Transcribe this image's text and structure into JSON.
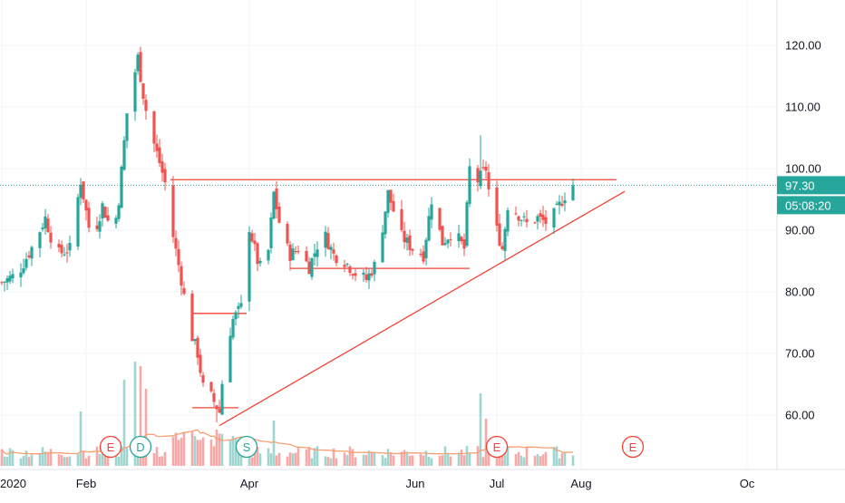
{
  "chart_data": {
    "type": "candlestick",
    "colors": {
      "up": "#26a69a",
      "down": "#ef5350",
      "volume_up": "#9fd6cf",
      "volume_down": "#f7a9a7",
      "drawing": "#f44336",
      "volume_ma": "#f7a072",
      "price_line": "#26a69a",
      "grid": "#f0f3fa",
      "axis_text": "#131722"
    },
    "yaxis": {
      "ticks": [
        60,
        70,
        80,
        90,
        100,
        110,
        120
      ],
      "labels": [
        "60.00",
        "70.00",
        "80.00",
        "90.00",
        "100.00",
        "110.00",
        "120.00"
      ],
      "ylim": [
        52,
        128
      ]
    },
    "xaxis": {
      "labels": [
        "2020",
        "Feb",
        "Apr",
        "Jun",
        "Jul",
        "Aug",
        "Oc"
      ],
      "label_day": [
        0,
        31,
        91,
        152,
        182,
        213,
        274
      ],
      "xlim_day": [
        0,
        282
      ]
    },
    "last_price": "97.30",
    "countdown": "05:08:20",
    "events": [
      {
        "day": 40,
        "label": "E"
      },
      {
        "day": 51,
        "label": "D"
      },
      {
        "day": 90,
        "label": "S"
      },
      {
        "day": 182,
        "label": "E"
      },
      {
        "day": 232,
        "label": "E"
      }
    ],
    "drawings": {
      "lines": [
        {
          "d1": 62,
          "v1": 98.2,
          "d2": 226,
          "v2": 98.2
        },
        {
          "d1": 80,
          "v1": 58.3,
          "d2": 229,
          "v2": 96.3
        },
        {
          "d1": 106,
          "v1": 83.8,
          "d2": 172,
          "v2": 83.8
        },
        {
          "d1": 70,
          "v1": 76.5,
          "d2": 90,
          "v2": 76.5
        },
        {
          "d1": 70,
          "v1": 61.2,
          "d2": 87,
          "v2": 61.2
        }
      ]
    },
    "anchors": [
      [
        0,
        81.5
      ],
      [
        6,
        83
      ],
      [
        12,
        88
      ],
      [
        16,
        92
      ],
      [
        20,
        86
      ],
      [
        25,
        87
      ],
      [
        29,
        98
      ],
      [
        33,
        88
      ],
      [
        37,
        94
      ],
      [
        41,
        89
      ],
      [
        43,
        95
      ],
      [
        46,
        109
      ],
      [
        50,
        118
      ],
      [
        52,
        112
      ],
      [
        54,
        107
      ],
      [
        58,
        101
      ],
      [
        61,
        96
      ],
      [
        63,
        89
      ],
      [
        66,
        82
      ],
      [
        69,
        74
      ],
      [
        72,
        70
      ],
      [
        75,
        61.8
      ],
      [
        77,
        63
      ],
      [
        80,
        60.5
      ],
      [
        82,
        70
      ],
      [
        85,
        75.5
      ],
      [
        88,
        77.5
      ],
      [
        91,
        90.5
      ],
      [
        94,
        85
      ],
      [
        97,
        82
      ],
      [
        100,
        96
      ],
      [
        103,
        89
      ],
      [
        106,
        86
      ],
      [
        109,
        87
      ],
      [
        113,
        84
      ],
      [
        118,
        90
      ],
      [
        122,
        86
      ],
      [
        126,
        85
      ],
      [
        130,
        83
      ],
      [
        134,
        82
      ],
      [
        138,
        85
      ],
      [
        142,
        96
      ],
      [
        147,
        89
      ],
      [
        151,
        87
      ],
      [
        155,
        86
      ],
      [
        158,
        95
      ],
      [
        162,
        88
      ],
      [
        166,
        90
      ],
      [
        170,
        87
      ],
      [
        172,
        100
      ],
      [
        175,
        98
      ],
      [
        178,
        100
      ],
      [
        180,
        93
      ],
      [
        184,
        87
      ],
      [
        186,
        94
      ],
      [
        189,
        93
      ],
      [
        193,
        91
      ],
      [
        197,
        92
      ],
      [
        201,
        91
      ],
      [
        205,
        94
      ],
      [
        208,
        96.5
      ],
      [
        210,
        97.3
      ]
    ],
    "highs": [
      [
        51,
        119.8
      ],
      [
        176,
        105.4
      ],
      [
        88,
        79.5
      ]
    ],
    "lows": [
      [
        79,
        58.8
      ],
      [
        185,
        85.2
      ]
    ],
    "volume_spikes": [
      [
        29,
        60
      ],
      [
        45,
        95
      ],
      [
        47,
        130
      ],
      [
        49,
        115
      ],
      [
        51,
        110
      ],
      [
        53,
        85
      ],
      [
        79,
        40
      ],
      [
        100,
        50
      ],
      [
        117,
        30
      ],
      [
        160,
        30
      ],
      [
        176,
        80
      ],
      [
        178,
        52
      ]
    ]
  }
}
